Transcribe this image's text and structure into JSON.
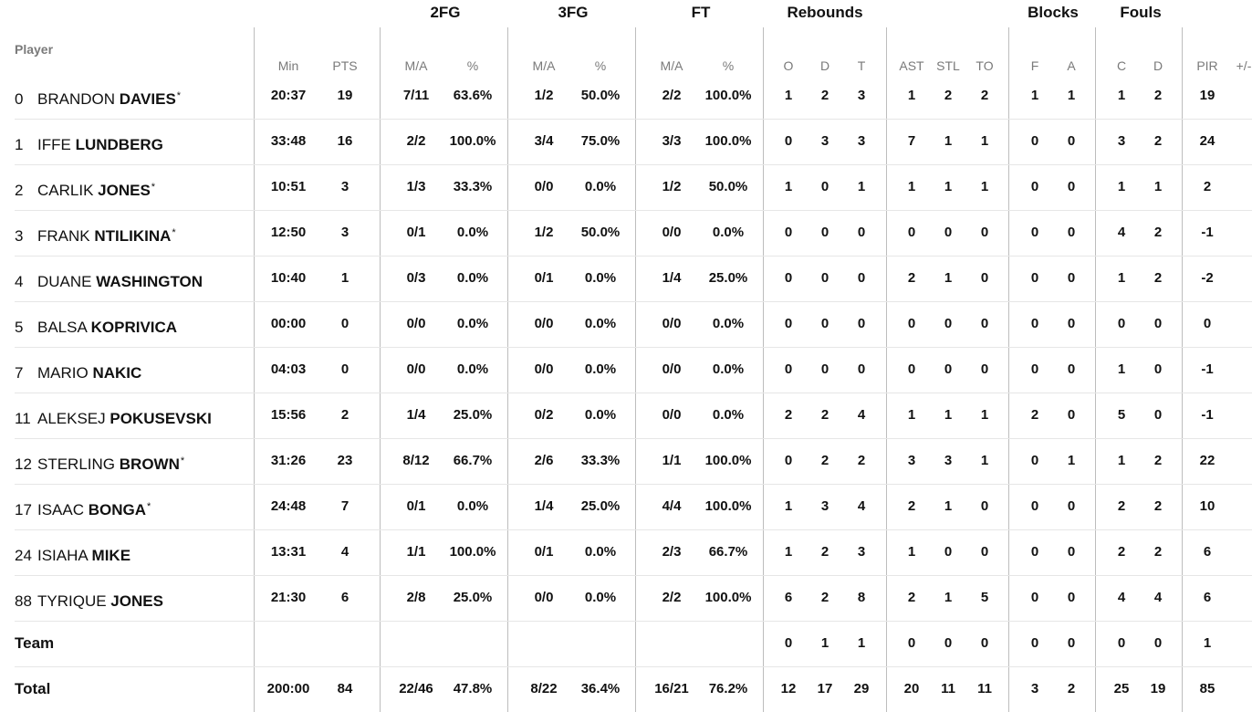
{
  "groups": {
    "twofg": "2FG",
    "threefg": "3FG",
    "ft": "FT",
    "rebounds": "Rebounds",
    "blocks": "Blocks",
    "fouls": "Fouls"
  },
  "headers": {
    "player": "Player",
    "min": "Min",
    "pts": "PTS",
    "twofg_ma": "M/A",
    "twofg_pct": "%",
    "threefg_ma": "M/A",
    "threefg_pct": "%",
    "ft_ma": "M/A",
    "ft_pct": "%",
    "reb_o": "O",
    "reb_d": "D",
    "reb_t": "T",
    "ast": "AST",
    "stl": "STL",
    "to": "TO",
    "blk_f": "F",
    "blk_a": "A",
    "foul_c": "C",
    "foul_d": "D",
    "pir": "PIR",
    "pm": "+/-"
  },
  "players": [
    {
      "number": "0",
      "first": "BRANDON",
      "last": "DAVIES",
      "starter": "*",
      "min": "20:37",
      "pts": "19",
      "twofg_ma": "7/11",
      "twofg_pct": "63.6%",
      "threefg_ma": "1/2",
      "threefg_pct": "50.0%",
      "ft_ma": "2/2",
      "ft_pct": "100.0%",
      "reb_o": "1",
      "reb_d": "2",
      "reb_t": "3",
      "ast": "1",
      "stl": "2",
      "to": "2",
      "blk_f": "1",
      "blk_a": "1",
      "foul_c": "1",
      "foul_d": "2",
      "pir": "19"
    },
    {
      "number": "1",
      "first": "IFFE",
      "last": "LUNDBERG",
      "starter": "",
      "min": "33:48",
      "pts": "16",
      "twofg_ma": "2/2",
      "twofg_pct": "100.0%",
      "threefg_ma": "3/4",
      "threefg_pct": "75.0%",
      "ft_ma": "3/3",
      "ft_pct": "100.0%",
      "reb_o": "0",
      "reb_d": "3",
      "reb_t": "3",
      "ast": "7",
      "stl": "1",
      "to": "1",
      "blk_f": "0",
      "blk_a": "0",
      "foul_c": "3",
      "foul_d": "2",
      "pir": "24"
    },
    {
      "number": "2",
      "first": "CARLIK",
      "last": "JONES",
      "starter": "*",
      "min": "10:51",
      "pts": "3",
      "twofg_ma": "1/3",
      "twofg_pct": "33.3%",
      "threefg_ma": "0/0",
      "threefg_pct": "0.0%",
      "ft_ma": "1/2",
      "ft_pct": "50.0%",
      "reb_o": "1",
      "reb_d": "0",
      "reb_t": "1",
      "ast": "1",
      "stl": "1",
      "to": "1",
      "blk_f": "0",
      "blk_a": "0",
      "foul_c": "1",
      "foul_d": "1",
      "pir": "2"
    },
    {
      "number": "3",
      "first": "FRANK",
      "last": "NTILIKINA",
      "starter": "*",
      "min": "12:50",
      "pts": "3",
      "twofg_ma": "0/1",
      "twofg_pct": "0.0%",
      "threefg_ma": "1/2",
      "threefg_pct": "50.0%",
      "ft_ma": "0/0",
      "ft_pct": "0.0%",
      "reb_o": "0",
      "reb_d": "0",
      "reb_t": "0",
      "ast": "0",
      "stl": "0",
      "to": "0",
      "blk_f": "0",
      "blk_a": "0",
      "foul_c": "4",
      "foul_d": "2",
      "pir": "-1"
    },
    {
      "number": "4",
      "first": "DUANE",
      "last": "WASHINGTON",
      "starter": "",
      "min": "10:40",
      "pts": "1",
      "twofg_ma": "0/3",
      "twofg_pct": "0.0%",
      "threefg_ma": "0/1",
      "threefg_pct": "0.0%",
      "ft_ma": "1/4",
      "ft_pct": "25.0%",
      "reb_o": "0",
      "reb_d": "0",
      "reb_t": "0",
      "ast": "2",
      "stl": "1",
      "to": "0",
      "blk_f": "0",
      "blk_a": "0",
      "foul_c": "1",
      "foul_d": "2",
      "pir": "-2"
    },
    {
      "number": "5",
      "first": "BALSA",
      "last": "KOPRIVICA",
      "starter": "",
      "min": "00:00",
      "pts": "0",
      "twofg_ma": "0/0",
      "twofg_pct": "0.0%",
      "threefg_ma": "0/0",
      "threefg_pct": "0.0%",
      "ft_ma": "0/0",
      "ft_pct": "0.0%",
      "reb_o": "0",
      "reb_d": "0",
      "reb_t": "0",
      "ast": "0",
      "stl": "0",
      "to": "0",
      "blk_f": "0",
      "blk_a": "0",
      "foul_c": "0",
      "foul_d": "0",
      "pir": "0"
    },
    {
      "number": "7",
      "first": "MARIO",
      "last": "NAKIC",
      "starter": "",
      "min": "04:03",
      "pts": "0",
      "twofg_ma": "0/0",
      "twofg_pct": "0.0%",
      "threefg_ma": "0/0",
      "threefg_pct": "0.0%",
      "ft_ma": "0/0",
      "ft_pct": "0.0%",
      "reb_o": "0",
      "reb_d": "0",
      "reb_t": "0",
      "ast": "0",
      "stl": "0",
      "to": "0",
      "blk_f": "0",
      "blk_a": "0",
      "foul_c": "1",
      "foul_d": "0",
      "pir": "-1"
    },
    {
      "number": "11",
      "first": "ALEKSEJ",
      "last": "POKUSEVSKI",
      "starter": "",
      "min": "15:56",
      "pts": "2",
      "twofg_ma": "1/4",
      "twofg_pct": "25.0%",
      "threefg_ma": "0/2",
      "threefg_pct": "0.0%",
      "ft_ma": "0/0",
      "ft_pct": "0.0%",
      "reb_o": "2",
      "reb_d": "2",
      "reb_t": "4",
      "ast": "1",
      "stl": "1",
      "to": "1",
      "blk_f": "2",
      "blk_a": "0",
      "foul_c": "5",
      "foul_d": "0",
      "pir": "-1"
    },
    {
      "number": "12",
      "first": "STERLING",
      "last": "BROWN",
      "starter": "*",
      "min": "31:26",
      "pts": "23",
      "twofg_ma": "8/12",
      "twofg_pct": "66.7%",
      "threefg_ma": "2/6",
      "threefg_pct": "33.3%",
      "ft_ma": "1/1",
      "ft_pct": "100.0%",
      "reb_o": "0",
      "reb_d": "2",
      "reb_t": "2",
      "ast": "3",
      "stl": "3",
      "to": "1",
      "blk_f": "0",
      "blk_a": "1",
      "foul_c": "1",
      "foul_d": "2",
      "pir": "22"
    },
    {
      "number": "17",
      "first": "ISAAC",
      "last": "BONGA",
      "starter": "*",
      "min": "24:48",
      "pts": "7",
      "twofg_ma": "0/1",
      "twofg_pct": "0.0%",
      "threefg_ma": "1/4",
      "threefg_pct": "25.0%",
      "ft_ma": "4/4",
      "ft_pct": "100.0%",
      "reb_o": "1",
      "reb_d": "3",
      "reb_t": "4",
      "ast": "2",
      "stl": "1",
      "to": "0",
      "blk_f": "0",
      "blk_a": "0",
      "foul_c": "2",
      "foul_d": "2",
      "pir": "10"
    },
    {
      "number": "24",
      "first": "ISIAHA",
      "last": "MIKE",
      "starter": "",
      "min": "13:31",
      "pts": "4",
      "twofg_ma": "1/1",
      "twofg_pct": "100.0%",
      "threefg_ma": "0/1",
      "threefg_pct": "0.0%",
      "ft_ma": "2/3",
      "ft_pct": "66.7%",
      "reb_o": "1",
      "reb_d": "2",
      "reb_t": "3",
      "ast": "1",
      "stl": "0",
      "to": "0",
      "blk_f": "0",
      "blk_a": "0",
      "foul_c": "2",
      "foul_d": "2",
      "pir": "6"
    },
    {
      "number": "88",
      "first": "TYRIQUE",
      "last": "JONES",
      "starter": "",
      "min": "21:30",
      "pts": "6",
      "twofg_ma": "2/8",
      "twofg_pct": "25.0%",
      "threefg_ma": "0/0",
      "threefg_pct": "0.0%",
      "ft_ma": "2/2",
      "ft_pct": "100.0%",
      "reb_o": "6",
      "reb_d": "2",
      "reb_t": "8",
      "ast": "2",
      "stl": "1",
      "to": "5",
      "blk_f": "0",
      "blk_a": "0",
      "foul_c": "4",
      "foul_d": "4",
      "pir": "6"
    }
  ],
  "team": {
    "label": "Team",
    "reb_o": "0",
    "reb_d": "1",
    "reb_t": "1",
    "ast": "0",
    "stl": "0",
    "to": "0",
    "blk_f": "0",
    "blk_a": "0",
    "foul_c": "0",
    "foul_d": "0",
    "pir": "1"
  },
  "total": {
    "label": "Total",
    "min": "200:00",
    "pts": "84",
    "twofg_ma": "22/46",
    "twofg_pct": "47.8%",
    "threefg_ma": "8/22",
    "threefg_pct": "36.4%",
    "ft_ma": "16/21",
    "ft_pct": "76.2%",
    "reb_o": "12",
    "reb_d": "17",
    "reb_t": "29",
    "ast": "20",
    "stl": "11",
    "to": "11",
    "blk_f": "3",
    "blk_a": "2",
    "foul_c": "25",
    "foul_d": "19",
    "pir": "85"
  }
}
